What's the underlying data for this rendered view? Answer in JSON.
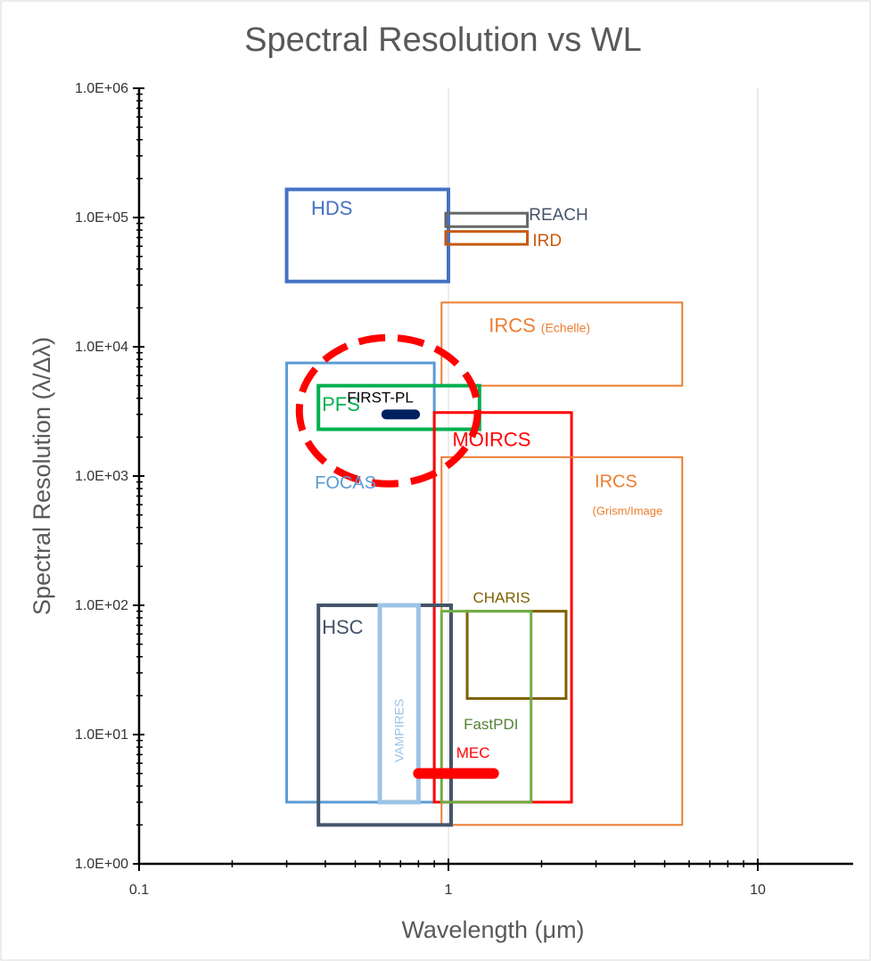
{
  "chart_data": {
    "type": "other",
    "title": "Spectral Resolution vs WL",
    "xlabel": "Wavelength (μm)",
    "ylabel": "Spectral Resolution (λ/Δλ)",
    "x_scale": "log",
    "y_scale": "log",
    "xlim": [
      0.1,
      20
    ],
    "ylim": [
      1,
      1000000
    ],
    "x_ticks": [
      {
        "value": 0.1,
        "label": "0.1"
      },
      {
        "value": 1,
        "label": "1"
      },
      {
        "value": 10,
        "label": "10"
      }
    ],
    "y_ticks": [
      {
        "value": 1,
        "label": "1.0E+00"
      },
      {
        "value": 10,
        "label": "1.0E+01"
      },
      {
        "value": 100,
        "label": "1.0E+02"
      },
      {
        "value": 1000,
        "label": "1.0E+03"
      },
      {
        "value": 10000,
        "label": "1.0E+04"
      },
      {
        "value": 100000,
        "label": "1.0E+05"
      },
      {
        "value": 1000000,
        "label": "1.0E+06"
      }
    ],
    "grid": "vertical",
    "instruments": [
      {
        "name": "HDS",
        "wl": [
          0.3,
          1.0
        ],
        "r": [
          32000,
          165000
        ],
        "color": "#4472c4",
        "stroke": 4,
        "label_at": [
          0.36,
          105000
        ],
        "label_size": 22
      },
      {
        "name": "REACH",
        "wl": [
          0.98,
          1.8
        ],
        "r": [
          85000,
          108000
        ],
        "color": "#666666",
        "stroke": 3,
        "label_at": [
          1.82,
          95000
        ],
        "label_size": 19,
        "label_color": "#44546a"
      },
      {
        "name": "IRD",
        "wl": [
          0.98,
          1.8
        ],
        "r": [
          62000,
          78000
        ],
        "color": "#c55a11",
        "stroke": 3,
        "label_at": [
          1.87,
          60000
        ],
        "label_size": 19
      },
      {
        "name": "IRCS",
        "sub": "(Echelle)",
        "wl": [
          0.95,
          5.7
        ],
        "r": [
          5000,
          22000
        ],
        "color": "#ed7d31",
        "stroke": 2,
        "label_at": [
          1.35,
          13000
        ],
        "label_size": 22
      },
      {
        "name": "FOCAS",
        "wl": [
          0.3,
          0.9
        ],
        "r": [
          3,
          7500
        ],
        "color": "#5b9bd5",
        "stroke": 3,
        "label_at": [
          0.37,
          800
        ],
        "label_size": 20
      },
      {
        "name": "PFS",
        "wl": [
          0.38,
          1.26
        ],
        "r": [
          2300,
          5000
        ],
        "color": "#00b050",
        "stroke": 4,
        "label_at": [
          0.39,
          3200
        ],
        "label_size": 22
      },
      {
        "name": "MOIRCS",
        "wl": [
          0.9,
          2.5
        ],
        "r": [
          3,
          3100
        ],
        "color": "#ff0000",
        "stroke": 3,
        "label_at": [
          1.03,
          1700
        ],
        "label_size": 22
      },
      {
        "name": "IRCS",
        "sub": "(Grism/Image",
        "wl": [
          0.95,
          5.7
        ],
        "r": [
          2,
          1400
        ],
        "color": "#ed7d31",
        "stroke": 2,
        "label_at": [
          2.97,
          820
        ],
        "label_size": 20,
        "sub_at": [
          2.92,
          500
        ]
      },
      {
        "name": "HSC",
        "wl": [
          0.38,
          1.02
        ],
        "r": [
          2,
          100
        ],
        "color": "#44546a",
        "stroke": 4,
        "label_at": [
          0.39,
          60
        ],
        "label_size": 22
      },
      {
        "name": "VAMPIRES",
        "wl": [
          0.6,
          0.8
        ],
        "r": [
          3,
          100
        ],
        "color": "#9dc3e6",
        "stroke": 5,
        "label_size": 14,
        "vertical": true
      },
      {
        "name": "CHARIS",
        "wl": [
          1.15,
          2.4
        ],
        "r": [
          19,
          90
        ],
        "color": "#7f6000",
        "stroke": 3,
        "label_at": [
          1.2,
          105
        ],
        "label_size": 17
      },
      {
        "name": "FastPDI",
        "wl": [
          0.95,
          1.85
        ],
        "r": [
          3,
          90
        ],
        "color": "#70ad47",
        "stroke": 3,
        "label_at": [
          1.12,
          11
        ],
        "label_size": 17,
        "label_color": "#548235"
      }
    ],
    "bars": [
      {
        "name": "FIRST-PL",
        "wl": [
          0.63,
          0.78
        ],
        "r": 3000,
        "color": "#002060",
        "stroke": 11,
        "label_at": [
          0.47,
          3700
        ],
        "label_size": 17,
        "label_color": "#000000"
      },
      {
        "name": "MEC",
        "wl": [
          0.8,
          1.4
        ],
        "r": 5,
        "color": "#ff0000",
        "stroke": 12,
        "label_at": [
          1.06,
          6.6
        ],
        "label_size": 17
      }
    ],
    "highlight": {
      "center": [
        0.64,
        3200
      ],
      "rx_px": 100,
      "ry_px": 82,
      "color": "#ff0000",
      "style": "dashed"
    }
  }
}
